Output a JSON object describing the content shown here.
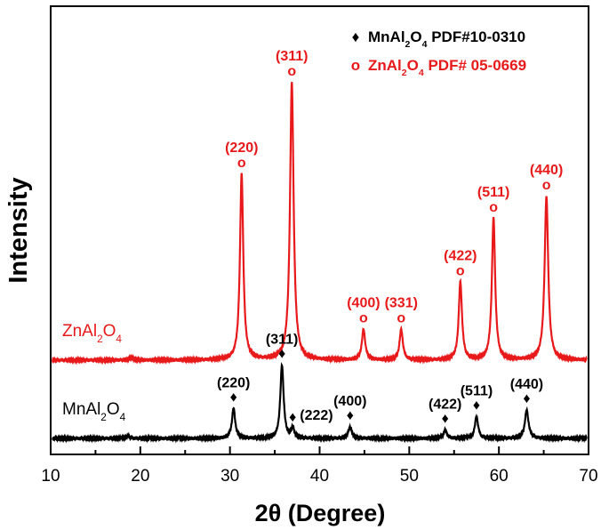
{
  "chart_data": {
    "type": "line",
    "xlabel": "2θ (Degree)",
    "ylabel": "Intensity",
    "xlim": [
      10,
      70
    ],
    "xticks": [
      "10",
      "20",
      "30",
      "40",
      "50",
      "60",
      "70"
    ],
    "grid": false,
    "legend_position": "top-right",
    "legend": [
      {
        "marker": "♦",
        "name_main": "MnAl",
        "sub1": "2",
        "mid": "O",
        "sub2": "4",
        "rest": " PDF#10-0310",
        "color": "#000000"
      },
      {
        "marker": "o",
        "name_main": "ZnAl",
        "sub1": "2",
        "mid": "O",
        "sub2": "4",
        "rest": "  PDF# 05-0669",
        "color": "#e8191b"
      }
    ],
    "series": [
      {
        "label_main": "ZnAl",
        "label_sub1": "2",
        "label_mid": "O",
        "label_sub2": "4",
        "color": "#e8191b",
        "marker": "o",
        "baseline": 0.0,
        "peaks": [
          {
            "x": 19.0,
            "height": 0.01,
            "width": 0.2
          },
          {
            "x": 31.3,
            "height": 0.67,
            "width": 0.22
          },
          {
            "x": 36.9,
            "height": 1.0,
            "width": 0.24
          },
          {
            "x": 44.9,
            "height": 0.11,
            "width": 0.22
          },
          {
            "x": 49.1,
            "height": 0.11,
            "width": 0.22
          },
          {
            "x": 55.7,
            "height": 0.28,
            "width": 0.22
          },
          {
            "x": 59.4,
            "height": 0.51,
            "width": 0.22
          },
          {
            "x": 65.3,
            "height": 0.59,
            "width": 0.24
          }
        ],
        "annotations": [
          {
            "hkl": "(220)",
            "x": 31.3
          },
          {
            "hkl": "(311)",
            "x": 36.9
          },
          {
            "hkl": "(400)",
            "x": 44.9
          },
          {
            "hkl": "(331)",
            "x": 49.1
          },
          {
            "hkl": "(422)",
            "x": 55.7
          },
          {
            "hkl": "(511)",
            "x": 59.4
          },
          {
            "hkl": "(440)",
            "x": 65.3
          }
        ]
      },
      {
        "label_main": "MnAl",
        "label_sub1": "2",
        "label_mid": "O",
        "label_sub2": "4",
        "color": "#000000",
        "marker": "♦",
        "baseline": 0.0,
        "peaks": [
          {
            "x": 18.6,
            "height": 0.008,
            "width": 0.2
          },
          {
            "x": 30.4,
            "height": 0.09,
            "width": 0.22
          },
          {
            "x": 35.8,
            "height": 0.22,
            "width": 0.22
          },
          {
            "x": 37.0,
            "height": 0.03,
            "width": 0.2
          },
          {
            "x": 43.4,
            "height": 0.035,
            "width": 0.22
          },
          {
            "x": 54.0,
            "height": 0.025,
            "width": 0.22
          },
          {
            "x": 57.5,
            "height": 0.065,
            "width": 0.22
          },
          {
            "x": 63.1,
            "height": 0.085,
            "width": 0.24
          }
        ],
        "annotations": [
          {
            "hkl": "(220)",
            "x": 30.4
          },
          {
            "hkl": "(311)",
            "x": 35.8
          },
          {
            "hkl": "(222)",
            "x": 37.0
          },
          {
            "hkl": "(400)",
            "x": 43.4
          },
          {
            "hkl": "(422)",
            "x": 54.0
          },
          {
            "hkl": "(511)",
            "x": 57.5
          },
          {
            "hkl": "(440)",
            "x": 63.1
          }
        ]
      }
    ]
  }
}
